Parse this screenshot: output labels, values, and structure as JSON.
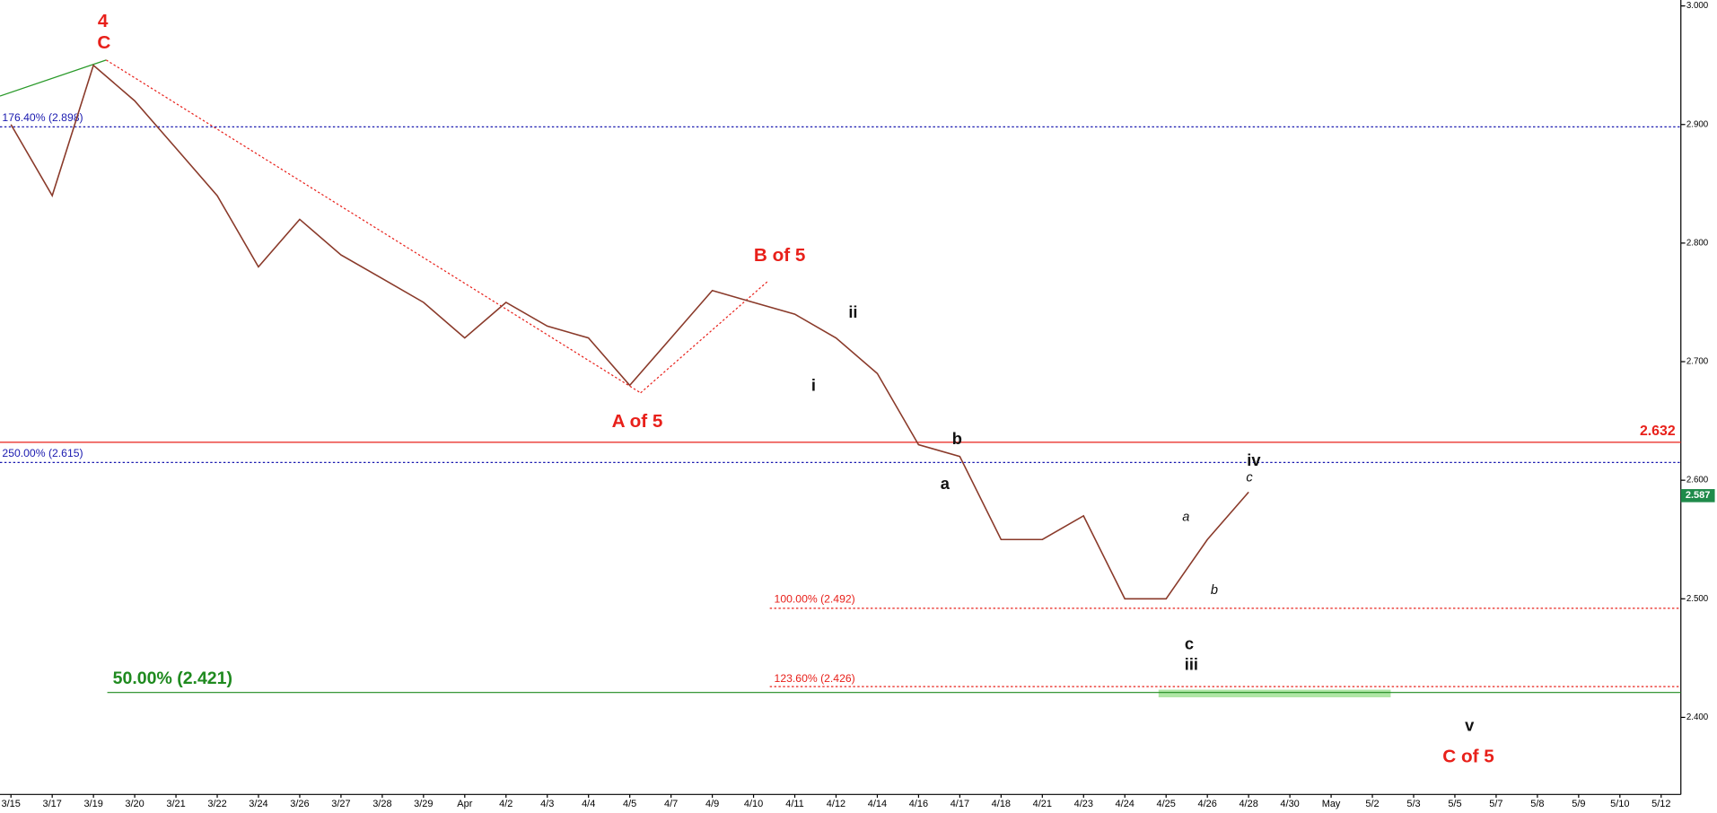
{
  "chart_data": {
    "type": "line",
    "categories": [
      "3/15",
      "3/17",
      "3/19",
      "3/20",
      "3/21",
      "3/22",
      "3/24",
      "3/26",
      "3/27",
      "3/28",
      "3/29",
      "Apr",
      "4/2",
      "4/3",
      "4/4",
      "4/5",
      "4/7",
      "4/9",
      "4/10",
      "4/11",
      "4/12",
      "4/14",
      "4/16",
      "4/17",
      "4/18",
      "4/21",
      "4/23",
      "4/24",
      "4/25",
      "4/26",
      "4/28",
      "4/30",
      "May",
      "5/2",
      "5/3",
      "5/5",
      "5/7",
      "5/8",
      "5/9",
      "5/10",
      "5/12"
    ],
    "series": [
      {
        "color": "#8a3a2a",
        "values": [
          2.9,
          2.84,
          2.95,
          2.92,
          2.88,
          2.84,
          2.78,
          2.82,
          2.79,
          2.77,
          2.75,
          2.72,
          2.75,
          2.73,
          2.72,
          2.68,
          2.72,
          2.76,
          2.75,
          2.74,
          2.72,
          2.69,
          2.63,
          2.62,
          2.55,
          2.55,
          2.57,
          2.5,
          2.5,
          2.55,
          2.59,
          null,
          null,
          null,
          null,
          null,
          null,
          null,
          null,
          null,
          null
        ]
      }
    ],
    "ylim": [
      2.335,
      3.005
    ],
    "yticks": [
      {
        "value": 2.4,
        "label": "2.400"
      },
      {
        "value": 2.5,
        "label": "2.500"
      },
      {
        "value": 2.6,
        "label": "2.600"
      },
      {
        "value": 2.7,
        "label": "2.700"
      },
      {
        "value": 2.8,
        "label": "2.800"
      },
      {
        "value": 2.9,
        "label": "2.900"
      },
      {
        "value": 3.0,
        "label": "3.000"
      }
    ],
    "last_price": 2.587,
    "levels": [
      {
        "label": "176.40% (2.898)",
        "value": 2.898,
        "color": "#1a1ab0",
        "dashed": true
      },
      {
        "label": "2.632",
        "value": 2.632,
        "color": "#e8201a",
        "dashed": false
      },
      {
        "label": "250.00% (2.615)",
        "value": 2.615,
        "color": "#1a1ab0",
        "dashed": true
      },
      {
        "label": "100.00% (2.492)",
        "value": 2.492,
        "color": "#e8201a",
        "dashed": true
      },
      {
        "label": "123.60% (2.426)",
        "value": 2.426,
        "color": "#e8201a",
        "dashed": true
      },
      {
        "label": "50.00% (2.421)",
        "value": 2.421,
        "color": "#1f8a1f",
        "dashed": false
      }
    ],
    "annotations": [
      {
        "text": "4",
        "color": "#e8201a",
        "style": "bold"
      },
      {
        "text": "C",
        "color": "#e8201a",
        "style": "bold"
      },
      {
        "text": "B of 5",
        "color": "#e8201a",
        "style": "bold"
      },
      {
        "text": "A of 5",
        "color": "#e8201a",
        "style": "bold"
      },
      {
        "text": "C of 5",
        "color": "#e8201a",
        "style": "bold"
      },
      {
        "text": "i",
        "color": "#111",
        "style": "bold"
      },
      {
        "text": "ii",
        "color": "#111",
        "style": "bold"
      },
      {
        "text": "iii",
        "color": "#111",
        "style": "bold"
      },
      {
        "text": "iv",
        "color": "#111",
        "style": "bold"
      },
      {
        "text": "v",
        "color": "#111",
        "style": "bold"
      },
      {
        "text": "a",
        "color": "#111",
        "style": "bold"
      },
      {
        "text": "b",
        "color": "#111",
        "style": "bold"
      },
      {
        "text": "c",
        "color": "#111",
        "style": "bold"
      },
      {
        "text": "a",
        "color": "#111",
        "style": "italic"
      },
      {
        "text": "b",
        "color": "#111",
        "style": "italic"
      },
      {
        "text": "c",
        "color": "#111",
        "style": "italic"
      }
    ]
  }
}
